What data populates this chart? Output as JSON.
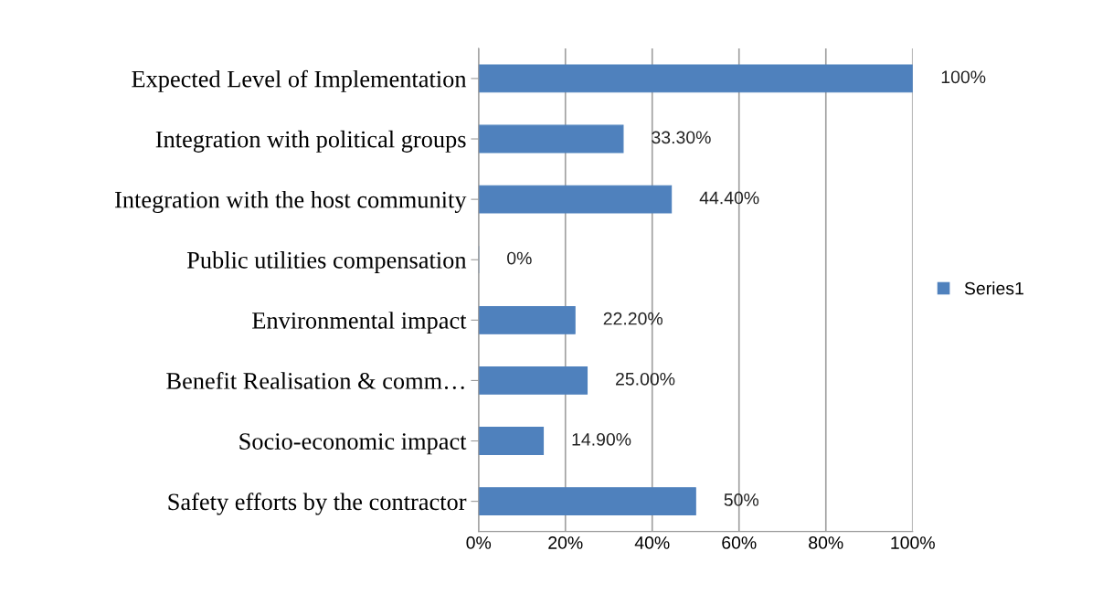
{
  "chart_data": {
    "type": "bar",
    "orientation": "horizontal",
    "categories": [
      "Expected Level of Implementation",
      "Integration with political groups",
      "Integration with the host community",
      "Public utilities compensation",
      "Environmental impact",
      "Benefit Realisation & comm…",
      "Socio-economic impact",
      "Safety efforts by the contractor"
    ],
    "series": [
      {
        "name": "Series1",
        "color": "#4f81bd",
        "values": [
          100,
          33.3,
          44.4,
          0,
          22.2,
          25,
          14.9,
          50
        ]
      }
    ],
    "value_labels": [
      "100%",
      "33.30%",
      "44.40%",
      "0%",
      "22.20%",
      "25.00%",
      "14.90%",
      "50%"
    ],
    "xlim": [
      0,
      100
    ],
    "xticks": [
      {
        "value": 0,
        "label": "0%"
      },
      {
        "value": 20,
        "label": "20%"
      },
      {
        "value": 40,
        "label": "40%"
      },
      {
        "value": 60,
        "label": "60%"
      },
      {
        "value": 80,
        "label": "80%"
      },
      {
        "value": 100,
        "label": "100%"
      }
    ],
    "grid": "x",
    "legend": "right"
  }
}
